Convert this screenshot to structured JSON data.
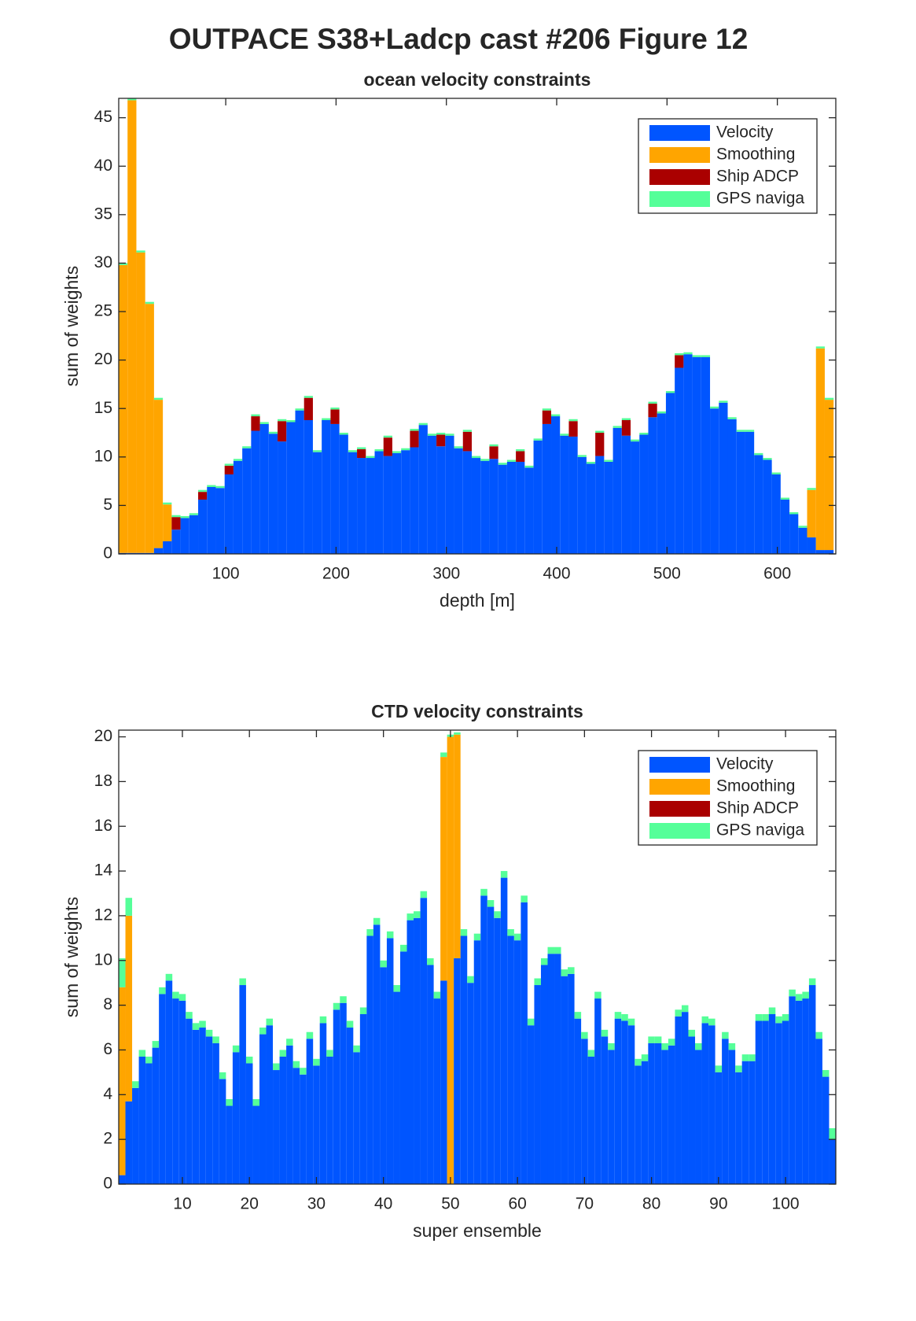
{
  "figure_title": "OUTPACE S38+Ladcp cast #206  Figure 12",
  "chart_data": [
    {
      "type": "stacked-bar",
      "title": "ocean velocity constraints",
      "xlabel": "depth [m]",
      "ylabel": "sum of weights",
      "x": [
        7,
        15,
        23,
        31,
        39,
        47,
        55,
        63,
        71,
        79,
        87,
        95,
        103,
        111,
        119,
        127,
        135,
        143,
        151,
        159,
        167,
        175,
        183,
        191,
        199,
        207,
        215,
        223,
        231,
        239,
        247,
        255,
        263,
        271,
        279,
        287,
        295,
        303,
        311,
        319,
        327,
        335,
        343,
        351,
        359,
        367,
        375,
        383,
        391,
        399,
        407,
        415,
        423,
        431,
        439,
        447,
        455,
        463,
        471,
        479,
        487,
        495,
        503,
        511,
        519,
        527,
        535,
        543,
        551,
        559,
        567,
        575,
        583,
        591,
        599,
        607,
        615,
        623,
        631,
        639,
        647
      ],
      "series": [
        {
          "name": "Velocity",
          "color": "#0055ff",
          "values": [
            0.1,
            0.1,
            0.1,
            0.1,
            0.6,
            1.3,
            2.5,
            3.7,
            4.0,
            5.6,
            6.9,
            6.8,
            8.2,
            9.6,
            10.9,
            12.7,
            13.4,
            12.4,
            11.6,
            13.6,
            14.8,
            13.8,
            10.5,
            13.8,
            13.4,
            12.3,
            10.5,
            9.9,
            9.9,
            10.6,
            10.1,
            10.4,
            10.7,
            11.0,
            13.3,
            12.2,
            11.1,
            12.2,
            10.9,
            10.6,
            9.9,
            9.6,
            9.8,
            9.2,
            9.5,
            9.5,
            8.9,
            11.7,
            13.4,
            14.2,
            12.2,
            12.1,
            10.0,
            9.3,
            10.1,
            9.5,
            13.0,
            12.2,
            11.6,
            12.3,
            14.1,
            14.5,
            16.6,
            19.2,
            20.6,
            20.3,
            20.3,
            15.0,
            15.6,
            13.9,
            12.6,
            12.6,
            10.2,
            9.7,
            8.2,
            5.6,
            4.1,
            2.7,
            1.7,
            0.4,
            0.4
          ]
        },
        {
          "name": "Smoothing",
          "color": "#ffa500",
          "values": [
            29.7,
            46.7,
            31.0,
            25.7,
            15.3,
            3.8,
            0,
            0,
            0,
            0,
            0,
            0,
            0,
            0,
            0,
            0,
            0,
            0,
            0,
            0,
            0,
            0,
            0,
            0,
            0,
            0,
            0,
            0,
            0,
            0,
            0,
            0,
            0,
            0,
            0,
            0,
            0,
            0,
            0,
            0,
            0,
            0,
            0,
            0,
            0,
            0,
            0,
            0,
            0,
            0,
            0,
            0,
            0,
            0,
            0,
            0,
            0,
            0,
            0,
            0,
            0,
            0,
            0,
            0,
            0,
            0,
            0,
            0,
            0,
            0,
            0,
            0,
            0,
            0,
            0,
            0,
            0,
            0,
            4.9,
            20.8,
            15.5
          ]
        },
        {
          "name": "Ship ADCP",
          "color": "#aa0000",
          "values": [
            0,
            0,
            0,
            0,
            0,
            0,
            1.3,
            0,
            0,
            0.8,
            0,
            0,
            0.9,
            0,
            0,
            1.5,
            0,
            0,
            2.1,
            0,
            0,
            2.3,
            0,
            0,
            1.5,
            0,
            0,
            0.9,
            0,
            0,
            1.9,
            0,
            0,
            1.7,
            0,
            0,
            1.2,
            0,
            0,
            2.0,
            0,
            0,
            1.3,
            0,
            0,
            1.1,
            0,
            0,
            1.4,
            0,
            0,
            1.6,
            0,
            0,
            2.4,
            0,
            0,
            1.6,
            0,
            0,
            1.4,
            0,
            0,
            1.3,
            0,
            0,
            0,
            0,
            0,
            0,
            0,
            0,
            0,
            0,
            0,
            0,
            0,
            0,
            0,
            0,
            0
          ]
        },
        {
          "name": "GPS naviga",
          "color": "#55ff99",
          "values": [
            0.2,
            0.2,
            0.2,
            0.2,
            0.2,
            0.2,
            0.2,
            0.2,
            0.2,
            0.2,
            0.2,
            0.2,
            0.2,
            0.2,
            0.2,
            0.2,
            0.2,
            0.2,
            0.2,
            0.2,
            0.2,
            0.2,
            0.2,
            0.2,
            0.2,
            0.2,
            0.2,
            0.2,
            0.2,
            0.2,
            0.2,
            0.2,
            0.2,
            0.2,
            0.2,
            0.2,
            0.2,
            0.2,
            0.2,
            0.2,
            0.2,
            0.2,
            0.2,
            0.2,
            0.2,
            0.2,
            0.2,
            0.2,
            0.2,
            0.2,
            0.2,
            0.2,
            0.2,
            0.2,
            0.2,
            0.2,
            0.2,
            0.2,
            0.2,
            0.2,
            0.2,
            0.2,
            0.2,
            0.2,
            0.2,
            0.2,
            0.2,
            0.2,
            0.2,
            0.2,
            0.2,
            0.2,
            0.2,
            0.2,
            0.2,
            0.2,
            0.2,
            0.2,
            0.2,
            0.2,
            0.2
          ]
        }
      ],
      "xlim": [
        3,
        653
      ],
      "xticks": [
        100,
        200,
        300,
        400,
        500,
        600
      ],
      "ylim": [
        0,
        47
      ],
      "yticks": [
        0,
        5,
        10,
        15,
        20,
        25,
        30,
        35,
        40,
        45
      ],
      "legend": "upper right"
    },
    {
      "type": "stacked-bar",
      "title": "CTD velocity constraints",
      "xlabel": "super ensemble",
      "ylabel": "sum of weights",
      "x": [
        1,
        2,
        3,
        4,
        5,
        6,
        7,
        8,
        9,
        10,
        11,
        12,
        13,
        14,
        15,
        16,
        17,
        18,
        19,
        20,
        21,
        22,
        23,
        24,
        25,
        26,
        27,
        28,
        29,
        30,
        31,
        32,
        33,
        34,
        35,
        36,
        37,
        38,
        39,
        40,
        41,
        42,
        43,
        44,
        45,
        46,
        47,
        48,
        49,
        50,
        51,
        52,
        53,
        54,
        55,
        56,
        57,
        58,
        59,
        60,
        61,
        62,
        63,
        64,
        65,
        66,
        67,
        68,
        69,
        70,
        71,
        72,
        73,
        74,
        75,
        76,
        77,
        78,
        79,
        80,
        81,
        82,
        83,
        84,
        85,
        86,
        87,
        88,
        89,
        90,
        91,
        92,
        93,
        94,
        95,
        96,
        97,
        98,
        99,
        100,
        101,
        102,
        103,
        104,
        105,
        106,
        107
      ],
      "series": [
        {
          "name": "Velocity",
          "color": "#0055ff",
          "values": [
            0.4,
            3.7,
            4.3,
            5.7,
            5.4,
            6.1,
            8.5,
            9.1,
            8.3,
            8.2,
            7.4,
            6.9,
            7.0,
            6.6,
            6.3,
            4.7,
            3.5,
            5.9,
            8.9,
            5.4,
            3.5,
            6.7,
            7.1,
            5.1,
            5.7,
            6.2,
            5.2,
            4.9,
            6.5,
            5.3,
            7.2,
            5.7,
            7.8,
            8.1,
            7.0,
            5.9,
            7.6,
            11.1,
            11.6,
            9.7,
            11.0,
            8.6,
            10.4,
            11.8,
            11.9,
            12.8,
            9.8,
            8.3,
            9.1,
            0,
            10.1,
            11.1,
            9.0,
            10.9,
            12.9,
            12.4,
            11.9,
            13.7,
            11.1,
            10.9,
            12.6,
            7.1,
            8.9,
            9.8,
            10.3,
            10.3,
            9.3,
            9.4,
            7.4,
            6.5,
            5.7,
            8.3,
            6.6,
            6.0,
            7.4,
            7.3,
            7.1,
            5.3,
            5.5,
            6.3,
            6.3,
            6.0,
            6.2,
            7.5,
            7.7,
            6.6,
            6.0,
            7.2,
            7.1,
            5.0,
            6.5,
            6.0,
            5.0,
            5.5,
            5.5,
            7.3,
            7.3,
            7.6,
            7.2,
            7.3,
            8.4,
            8.2,
            8.3,
            8.9,
            6.5,
            4.8,
            2.0
          ]
        },
        {
          "name": "Smoothing",
          "color": "#ffa500",
          "values": [
            8.4,
            8.3,
            0,
            0,
            0,
            0,
            0,
            0,
            0,
            0,
            0,
            0,
            0,
            0,
            0,
            0,
            0,
            0,
            0,
            0,
            0,
            0,
            0,
            0,
            0,
            0,
            0,
            0,
            0,
            0,
            0,
            0,
            0,
            0,
            0,
            0,
            0,
            0,
            0,
            0,
            0,
            0,
            0,
            0,
            0,
            0,
            0,
            0,
            10.0,
            20.0,
            10.0,
            0,
            0,
            0,
            0,
            0,
            0,
            0,
            0,
            0,
            0,
            0,
            0,
            0,
            0,
            0,
            0,
            0,
            0,
            0,
            0,
            0,
            0,
            0,
            0,
            0,
            0,
            0,
            0,
            0,
            0,
            0,
            0,
            0,
            0,
            0,
            0,
            0,
            0,
            0,
            0,
            0,
            0,
            0,
            0,
            0,
            0,
            0,
            0,
            0,
            0,
            0,
            0,
            0,
            0,
            0,
            0
          ]
        },
        {
          "name": "Ship ADCP",
          "color": "#aa0000",
          "values": [
            0,
            0,
            0,
            0,
            0,
            0,
            0,
            0,
            0,
            0,
            0,
            0,
            0,
            0,
            0,
            0,
            0,
            0,
            0,
            0,
            0,
            0,
            0,
            0,
            0,
            0,
            0,
            0,
            0,
            0,
            0,
            0,
            0,
            0,
            0,
            0,
            0,
            0,
            0,
            0,
            0,
            0,
            0,
            0,
            0,
            0,
            0,
            0,
            0,
            0,
            0,
            0,
            0,
            0,
            0,
            0,
            0,
            0,
            0,
            0,
            0,
            0,
            0,
            0,
            0,
            0,
            0,
            0,
            0,
            0,
            0,
            0,
            0,
            0,
            0,
            0,
            0,
            0,
            0,
            0,
            0,
            0,
            0,
            0,
            0,
            0,
            0,
            0,
            0,
            0,
            0,
            0,
            0,
            0,
            0,
            0,
            0,
            0,
            0,
            0,
            0,
            0,
            0,
            0,
            0,
            0,
            0
          ]
        },
        {
          "name": "GPS naviga",
          "color": "#55ff99",
          "values": [
            1.3,
            0.8,
            0.3,
            0.3,
            0.3,
            0.3,
            0.3,
            0.3,
            0.3,
            0.3,
            0.3,
            0.3,
            0.3,
            0.3,
            0.3,
            0.3,
            0.3,
            0.3,
            0.3,
            0.3,
            0.3,
            0.3,
            0.3,
            0.3,
            0.3,
            0.3,
            0.3,
            0.3,
            0.3,
            0.3,
            0.3,
            0.3,
            0.3,
            0.3,
            0.3,
            0.3,
            0.3,
            0.3,
            0.3,
            0.3,
            0.3,
            0.3,
            0.3,
            0.3,
            0.3,
            0.3,
            0.3,
            0.3,
            0.2,
            0.1,
            0.1,
            0.3,
            0.3,
            0.3,
            0.3,
            0.3,
            0.3,
            0.3,
            0.3,
            0.3,
            0.3,
            0.3,
            0.3,
            0.3,
            0.3,
            0.3,
            0.3,
            0.3,
            0.3,
            0.3,
            0.3,
            0.3,
            0.3,
            0.3,
            0.3,
            0.3,
            0.3,
            0.3,
            0.3,
            0.3,
            0.3,
            0.3,
            0.3,
            0.3,
            0.3,
            0.3,
            0.3,
            0.3,
            0.3,
            0.3,
            0.3,
            0.3,
            0.3,
            0.3,
            0.3,
            0.3,
            0.3,
            0.3,
            0.3,
            0.3,
            0.3,
            0.3,
            0.3,
            0.3,
            0.3,
            0.3,
            0.5
          ]
        }
      ],
      "xlim": [
        0.5,
        107.5
      ],
      "xticks": [
        10,
        20,
        30,
        40,
        50,
        60,
        70,
        80,
        90,
        100
      ],
      "ylim": [
        0,
        20.3
      ],
      "yticks": [
        0,
        2,
        4,
        6,
        8,
        10,
        12,
        14,
        16,
        18,
        20
      ],
      "legend": "upper right"
    }
  ]
}
